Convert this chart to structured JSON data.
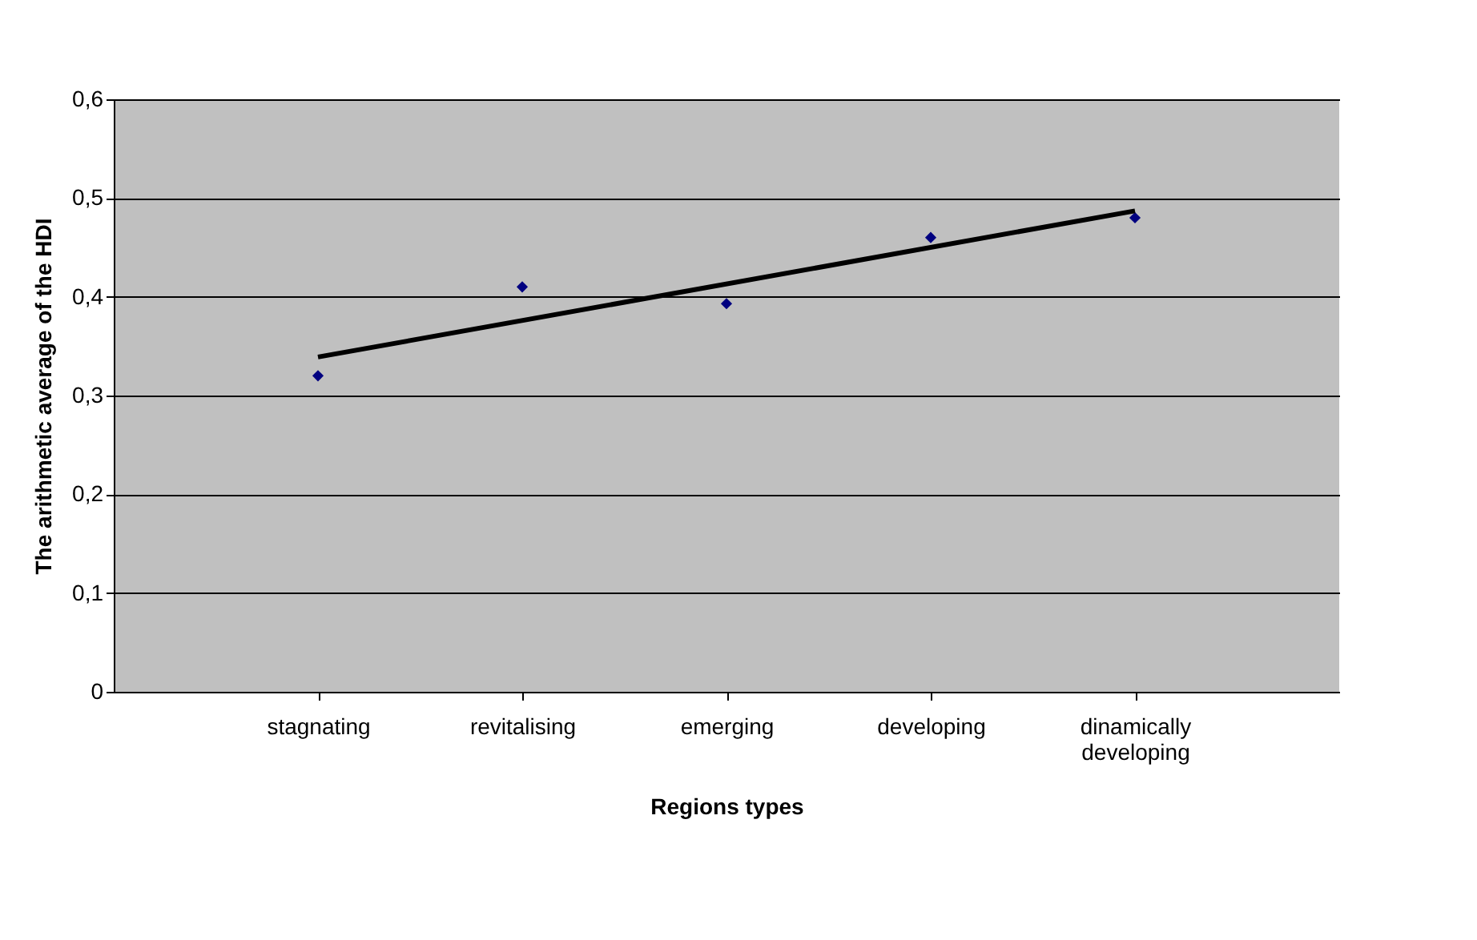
{
  "chart_data": {
    "type": "scatter",
    "xlabel": "Regions types",
    "ylabel": "The arithmetic average of the HDI",
    "categories": [
      "stagnating",
      "revitalising",
      "emerging",
      "developing",
      "dinamically developing"
    ],
    "series": [
      {
        "type": "scatter",
        "color": "#000080",
        "marker": "diamond",
        "values": [
          0.32,
          0.41,
          0.393,
          0.46,
          0.48
        ]
      },
      {
        "type": "line",
        "color": "#000000",
        "line_style": "solid",
        "marker": "none",
        "x": [
          "stagnating",
          "dinamically developing"
        ],
        "values": [
          0.339,
          0.487
        ]
      }
    ],
    "ylim": [
      0,
      0.6
    ],
    "yticks": [
      0,
      {
        "value": 0.1,
        "label": "0,1"
      },
      {
        "value": 0.2,
        "label": "0,2"
      },
      {
        "value": 0.3,
        "label": "0,3"
      },
      {
        "value": 0.4,
        "label": "0,4"
      },
      {
        "value": 0.5,
        "label": "0,5"
      },
      {
        "value": 0.6,
        "label": "0,6"
      }
    ],
    "grid": "y"
  }
}
